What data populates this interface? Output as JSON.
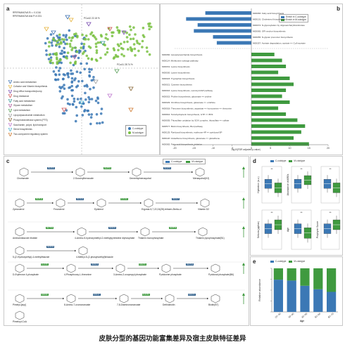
{
  "panels": {
    "a": "a",
    "b": "b",
    "c": "c",
    "d": "d",
    "e": "e"
  },
  "panel_a": {
    "stat1": "RPERMANOVA R² = 0.1016",
    "stat2": "RPERMANOVA test P=0.001",
    "pc1": "PCoA1 28.74 %",
    "pc2": "PCoA2 22.18 %",
    "legend_groups": [
      "C-cutotype",
      "M-cutotype"
    ],
    "legend_categories": [
      "Amino acid metabolism",
      "Cofactor and Vitamin biosynthesis",
      "Drug efflux transporter/pump",
      "Drug resistance",
      "Fatty acid metabolism",
      "Glycan metabolism",
      "Lipid metabolism",
      "Lipopolysaccharide metabolism",
      "Phosphotransferase system (PTS)",
      "Saccharide, polyol, lipid transport",
      "Sterol biosynthesis",
      "Two-component regulatory system"
    ]
  },
  "panel_b": {
    "legend": [
      "Enrich in C-cutotype",
      "Enrich in M-cutotype"
    ],
    "xlabel": "-log10(FDR adjusted p-value)",
    "ticks": [
      "-20",
      "-15",
      "-10",
      "-5",
      "0",
      "5",
      "10",
      "15",
      "20"
    ]
  },
  "panel_c": {
    "legend": [
      "C-cutotype",
      "M-cutotype"
    ],
    "compounds": [
      "Chorismate",
      "2-Succinylbenzoate",
      "Demethylmenaquinol",
      "Menaquinol(K2)",
      "Zymosterol",
      "Fecosterol",
      "Episterol",
      "Ergosta-5,7,22,24(28)-tetraen-3beta-ol",
      "Vitamin D2",
      "Aminoimidazole ribotide",
      "4-Amino-5-hydroxymethyl-2-methylpyrimidine diphosphate",
      "Thiamin monophosphate",
      "Thiamin pyrophosphate(B1)",
      "5-(2-Hydroxyethyl)-4-methylthiazole",
      "4-Methyl-5-(2-phosphoethyl)thiazole",
      "D-Erythrose 4-phosphate",
      "4-Phosphooxy-L-threonine",
      "3-Amino-2-oxopropyl phosphate",
      "Pyridoxine phosphate",
      "Pyridoxal phosphate(B6)",
      "Pimelyl-[acp]",
      "8-Amino-7-oxononanoate",
      "7,8-Diaminononanoate",
      "Dethiobiotin",
      "Biotin(B7)",
      "Pimeloyl-CoA"
    ],
    "ko_labels": [
      "K02361",
      "K02552",
      "K01851",
      "K02548",
      "K03183",
      "K15222",
      "K00227",
      "K07750",
      "K09831",
      "K00559",
      "K03639",
      "K14153",
      "K00941",
      "K00878",
      "K00788",
      "K00946",
      "K03147",
      "K14154",
      "K03474",
      "K00831",
      "K00275",
      "K03474",
      "K00275",
      "K00652",
      "K00833",
      "K01935",
      "K01012",
      "K01906",
      "K16593"
    ]
  },
  "panel_d": {
    "legend": [
      "C-cutotype",
      "M-cutotype"
    ],
    "ylabels": [
      "Hydration (a.u.)",
      "Abundance of ARGs",
      "Sebum (μg/cm²)",
      "Age",
      "Porphyrin Score"
    ],
    "sig": [
      "**",
      "**",
      "**",
      "**",
      "**",
      "**"
    ]
  },
  "panel_e": {
    "legend": [
      "C-cutotype",
      "M-cutotype"
    ],
    "xlabel": "Age",
    "ylabel": "Relative abundance",
    "categories": [
      "20~30",
      "30~40",
      "40~50",
      "50~60",
      "60~70"
    ]
  },
  "chart_data": [
    {
      "type": "bar",
      "title": "",
      "xlabel": "-log10(FDR adjusted p-value)",
      "series": [
        {
          "name": "Enrich in C-cutotype",
          "color": "#3b78b5"
        },
        {
          "name": "Enrich in M-cutotype",
          "color": "#3f9a3f"
        }
      ],
      "categories": [
        "M00083: Fatty acid biosynthesis",
        "M00101: Cholesterol biosynthesis",
        "M00072: N-glycosylation by oligosaccharyltransferase",
        "M00065: GPI-anchor biosynthesis",
        "M00055: N-glycan precursor biosynthesis",
        "M00357: Acetate degradation, acetate => CoA-acetate",
        "M00060: Lipopolysaccharide biosynthesis",
        "M00114: Methionine salvage pathway",
        "M00031: Lysine biosynthesis",
        "M00030: Lysine biosynthesis",
        "M00023: Tryptophan biosynthesis",
        "M00021: Cysteine biosynthesis",
        "M00016: Lysine biosynthesis, succinyl-DAP pathway",
        "M00015: Proline biosynthesis, glutamate => proline",
        "M00029: Ornithine biosynthesis, glutamate => ornithine",
        "M00018: Threonine biosynthesis, aspartate => homoserine => threonine",
        "M00842: Tetrahydropterin biosynthesis, GTP => BH4",
        "M00005: Thiosulfate oxidation by SOX complex, thiosulfate => sulfate",
        "M00577: Biotin biosynthesis, BioI pathway",
        "M00125: Pyridoxal biosynthesis, erythrose-4P => pyridoxal-5P",
        "M00118: Glutathione biosynthesis, glutamate => glutathione",
        "M00082: Fatty acid biosynthesis, initiation"
      ],
      "values": [
        -12,
        -17,
        -14,
        -15,
        -10,
        -9,
        6,
        8,
        9,
        7,
        10,
        11,
        9,
        8,
        10,
        7,
        9,
        12,
        14,
        13,
        11,
        15
      ],
      "xlim": [
        -20,
        20
      ]
    },
    {
      "type": "bar",
      "title": "",
      "xlabel": "Age",
      "categories": [
        "20~30",
        "30~40",
        "40~50",
        "50~60",
        "60~70"
      ],
      "series": [
        {
          "name": "C-cutotype",
          "values": [
            0.74,
            0.72,
            0.6,
            0.52,
            0.46
          ],
          "color": "#3b78b5"
        },
        {
          "name": "M-cutotype",
          "values": [
            0.26,
            0.28,
            0.4,
            0.48,
            0.54
          ],
          "color": "#3f9a3f"
        }
      ],
      "ylim": [
        0,
        1
      ],
      "stacked": true
    }
  ],
  "caption": "皮肤分型的基因功能富集差异及宿主皮肤特征差异"
}
